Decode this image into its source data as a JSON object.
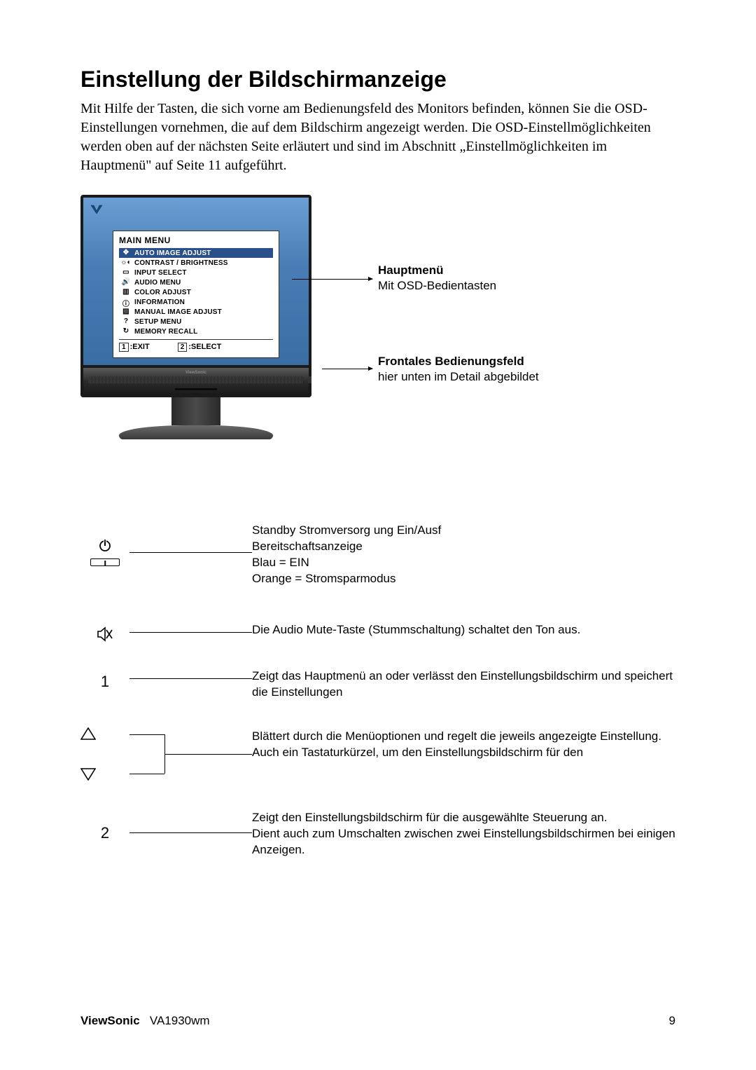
{
  "title": "Einstellung der Bildschirmanzeige",
  "intro": "Mit Hilfe der Tasten, die sich vorne am Bedienungsfeld des Monitors befinden, können Sie die OSD-Einstellungen vornehmen, die auf dem Bildschirm angezeigt werden. Die OSD-Einstellmöglichkeiten werden oben auf der nächsten Seite erläutert und sind im Abschnitt „Einstellmöglichkeiten im Hauptmenü\" auf Seite 11 aufgeführt.",
  "osd": {
    "title": "MAIN MENU",
    "items": [
      {
        "icon": "✥",
        "label": "AUTO IMAGE ADJUST",
        "selected": true
      },
      {
        "icon": "☼◐",
        "label": "CONTRAST / BRIGHTNESS"
      },
      {
        "icon": "▭",
        "label": "INPUT SELECT"
      },
      {
        "icon": "🔊",
        "label": "AUDIO MENU"
      },
      {
        "icon": "▥",
        "label": "COLOR ADJUST"
      },
      {
        "icon": "ⓘ",
        "label": "INFORMATION"
      },
      {
        "icon": "▨",
        "label": "MANUAL IMAGE ADJUST"
      },
      {
        "icon": "?",
        "label": "SETUP MENU"
      },
      {
        "icon": "↻",
        "label": "MEMORY RECALL"
      }
    ],
    "footer": {
      "k1": "1",
      "l1": ":EXIT",
      "k2": "2",
      "l2": ":SELECT"
    }
  },
  "anno1": {
    "title": "Hauptmenü",
    "text": "Mit OSD-Bedientasten"
  },
  "anno2": {
    "title": "Frontales Bedienungsfeld",
    "text": "hier unten im Detail abgebildet"
  },
  "controls": {
    "power": {
      "l1": "Standby Stromversorg ung Ein/Ausf",
      "l2": "Bereitschaftsanzeige",
      "l3": "Blau = EIN",
      "l4": "Orange = Stromsparmodus"
    },
    "mute": "Die Audio Mute-Taste (Stummschaltung) schaltet den Ton aus.",
    "btn1": "Zeigt das Hauptmenü an oder verlässt den Einstellungsbildschirm und speichert die Einstellungen",
    "arrows": {
      "p1": "Blättert durch die Menüoptionen und regelt die jeweils angezeigte Einstellung.",
      "p2": "Auch ein Tastaturkürzel, um den Einstellungsbildschirm für den"
    },
    "btn2": {
      "p1": "Zeigt den Einstellungsbildschirm für die ausgewählte Steuerung an.",
      "p2": "Dient auch zum Umschalten zwischen zwei Einstellungsbildschirmen bei einigen Anzeigen."
    },
    "lab1": "1",
    "lab2": "2"
  },
  "footer": {
    "brand": "ViewSonic",
    "model": "VA1930wm",
    "page": "9"
  }
}
